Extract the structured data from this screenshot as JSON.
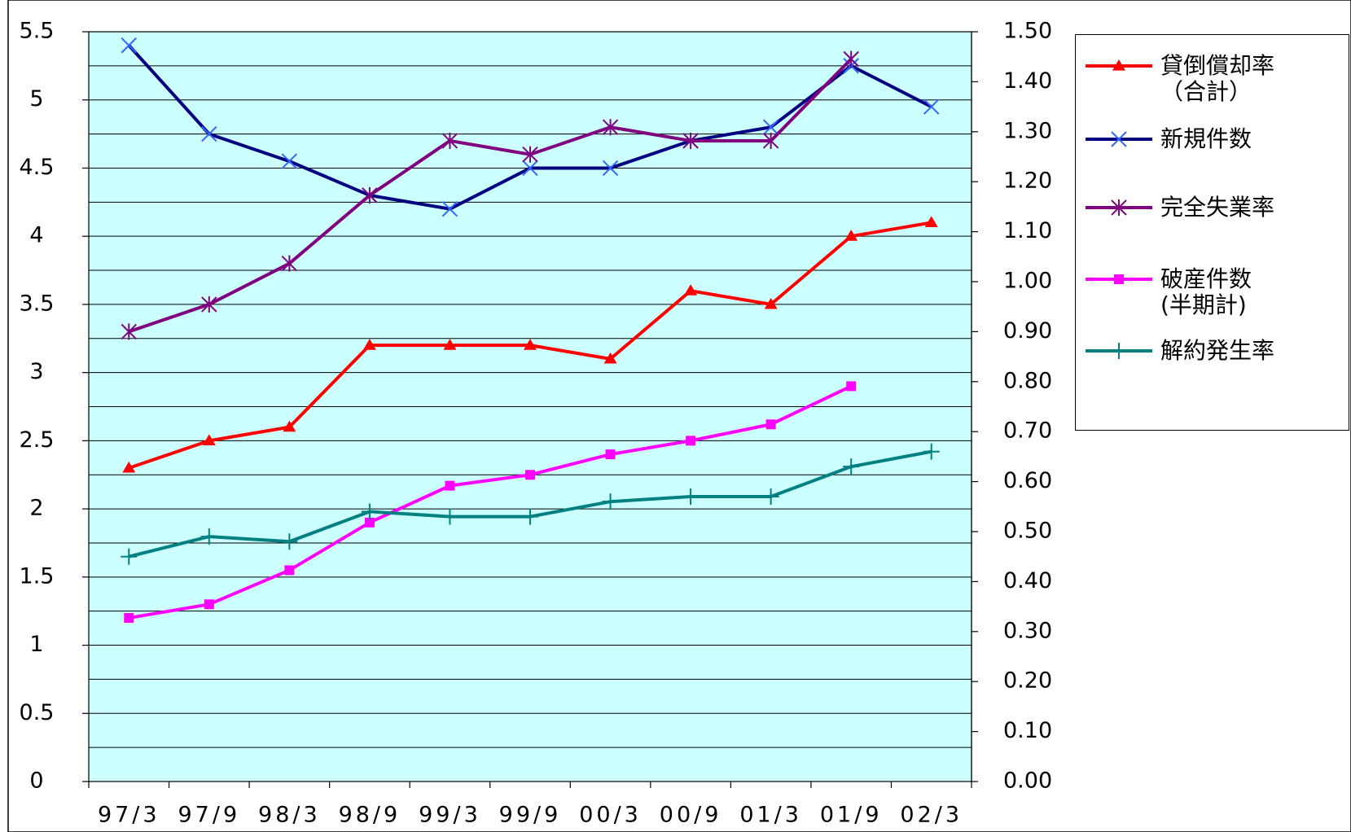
{
  "chart_data": {
    "type": "line",
    "categories": [
      "97/3",
      "97/9",
      "98/3",
      "98/9",
      "99/3",
      "99/9",
      "00/3",
      "00/9",
      "01/3",
      "01/9",
      "02/3"
    ],
    "series": [
      {
        "name": "貸倒償却率\n（合計）",
        "color": "#ff0000",
        "marker": "triangle",
        "values": [
          2.3,
          2.5,
          2.6,
          3.2,
          3.2,
          3.2,
          3.1,
          3.6,
          3.5,
          4.0,
          4.1
        ]
      },
      {
        "name": "新規件数",
        "color": "#000080",
        "marker": "x",
        "marker_color": "#3366ff",
        "values": [
          5.4,
          4.75,
          4.55,
          4.3,
          4.2,
          4.5,
          4.5,
          4.7,
          4.8,
          5.25,
          4.95
        ]
      },
      {
        "name": "完全失業率",
        "color": "#800080",
        "marker": "asterisk",
        "values": [
          3.3,
          3.5,
          3.8,
          4.3,
          4.7,
          4.6,
          4.8,
          4.7,
          4.7,
          5.3,
          null
        ]
      },
      {
        "name": "破産件数\n(半期計)",
        "color": "#ff00ff",
        "marker": "square",
        "values": [
          1.2,
          1.3,
          1.55,
          1.9,
          2.17,
          2.25,
          2.4,
          2.5,
          2.62,
          2.9,
          null
        ]
      },
      {
        "name": "解約発生率",
        "color": "#008080",
        "marker": "plus",
        "axis": "y2",
        "values": [
          0.45,
          0.49,
          0.48,
          0.54,
          0.53,
          0.53,
          0.56,
          0.57,
          0.57,
          0.63,
          0.66
        ]
      }
    ],
    "ylim": [
      0,
      5.5
    ],
    "yticks": [
      0,
      0.5,
      1,
      1.5,
      2,
      2.5,
      3,
      3.5,
      4,
      4.5,
      5,
      5.5
    ],
    "y2lim": [
      0,
      1.5
    ],
    "y2ticks": [
      {
        "value": 0,
        "label": "0.00"
      },
      {
        "value": 0.1,
        "label": "0.10"
      },
      {
        "value": 0.2,
        "label": "0.20"
      },
      {
        "value": 0.3,
        "label": "0.30"
      },
      {
        "value": 0.4,
        "label": "0.40"
      },
      {
        "value": 0.5,
        "label": "0.50"
      },
      {
        "value": 0.6,
        "label": "0.60"
      },
      {
        "value": 0.7,
        "label": "0.70"
      },
      {
        "value": 0.8,
        "label": "0.80"
      },
      {
        "value": 0.9,
        "label": "0.90"
      },
      {
        "value": 1.0,
        "label": "1.00"
      },
      {
        "value": 1.1,
        "label": "1.10"
      },
      {
        "value": 1.2,
        "label": "1.20"
      },
      {
        "value": 1.3,
        "label": "1.30"
      },
      {
        "value": 1.4,
        "label": "1.40"
      },
      {
        "value": 1.5,
        "label": "1.50"
      }
    ],
    "grid": true,
    "legend": "right",
    "background": "#ccffff"
  }
}
